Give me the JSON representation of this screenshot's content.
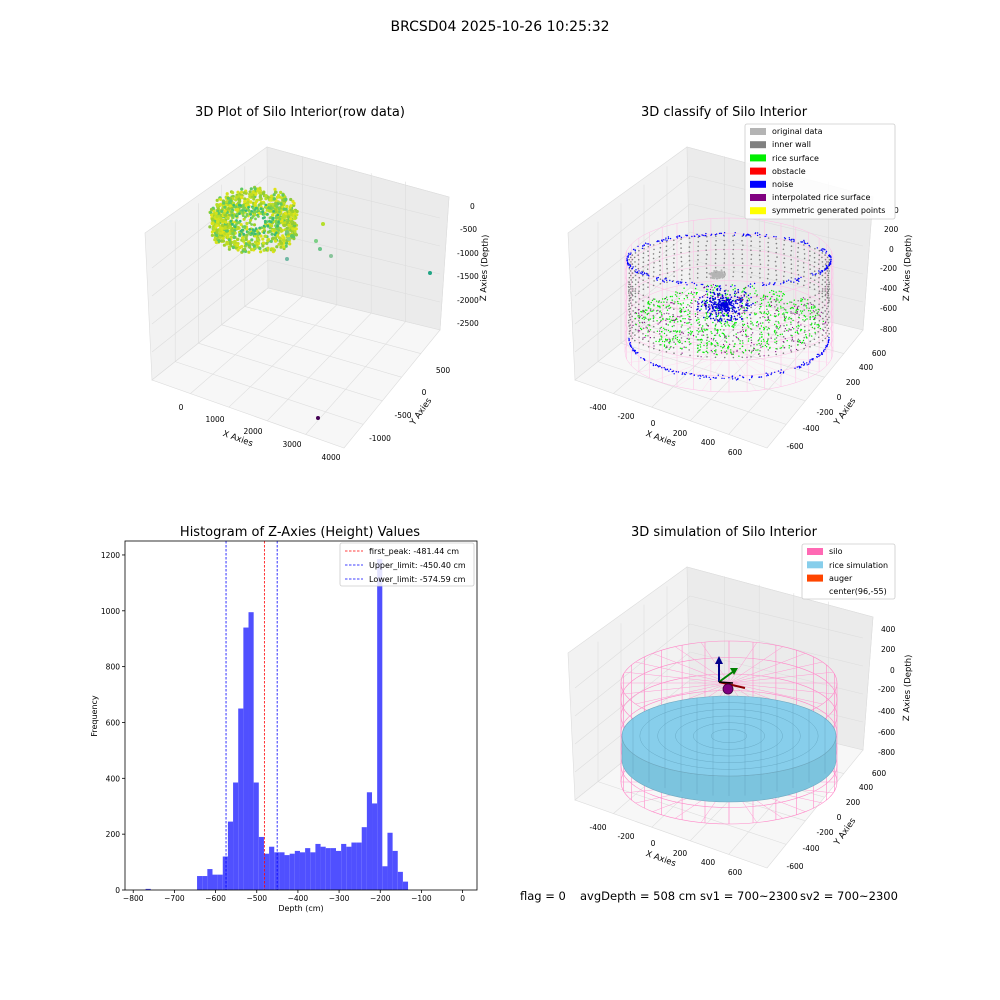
{
  "figure": {
    "suptitle": "BRCSD04 2025-10-26 10:25:32",
    "footer": {
      "flag": "flag = 0",
      "avg_depth": "avgDepth = 508 cm",
      "sv1": "sv1 = 700~2300",
      "sv2": "sv2 = 700~2300"
    }
  },
  "chart_data": [
    {
      "type": "scatter",
      "subtype": "3d",
      "title": "3D Plot of Silo Interior(row data)",
      "xlabel": "X Axies",
      "ylabel": "Y Axies",
      "zlabel": "Z Axies (Depth)",
      "x_ticks": [
        "0",
        "1000",
        "2000",
        "3000",
        "4000"
      ],
      "y_ticks": [
        "-1000",
        "-500",
        "0",
        "500"
      ],
      "z_ticks": [
        "0",
        "-500",
        "-1000",
        "-1500",
        "-2000",
        "-2500"
      ],
      "colormap": "viridis",
      "series": [
        {
          "role": "dense-cluster",
          "approx_x": [
            -200,
            700
          ],
          "approx_y": [
            -600,
            600
          ],
          "approx_z": [
            -900,
            -300
          ],
          "colors": [
            "#9acd32",
            "#d6e21b",
            "#2fb47c"
          ]
        },
        {
          "role": "outliers",
          "points": [
            {
              "x": 900,
              "y": -300,
              "z": -1600,
              "color": "#78c679"
            },
            {
              "x": 1000,
              "y": -200,
              "z": -1300,
              "color": "#5ec962"
            },
            {
              "x": 1500,
              "y": -100,
              "z": -1400,
              "color": "#21918c"
            },
            {
              "x": 1700,
              "y": -50,
              "z": -1500,
              "color": "#3bbc75"
            },
            {
              "x": 2000,
              "y": 0,
              "z": -1700,
              "color": "#2a9d8f"
            },
            {
              "x": 1800,
              "y": 200,
              "z": -800,
              "color": "#b5de2b"
            },
            {
              "x": 3800,
              "y": 300,
              "z": -1200,
              "color": "#21a585"
            },
            {
              "x": 3400,
              "y": -900,
              "z": -2900,
              "color": "#440154"
            }
          ]
        }
      ]
    },
    {
      "type": "scatter",
      "subtype": "3d",
      "title": "3D classify of Silo Interior",
      "xlabel": "X Axies",
      "ylabel": "Y Axies",
      "zlabel": "Z Axies (Depth)",
      "x_ticks": [
        "-400",
        "-200",
        "0",
        "200",
        "400",
        "600"
      ],
      "y_ticks": [
        "-600",
        "-400",
        "-200",
        "0",
        "200",
        "400",
        "600"
      ],
      "z_ticks": [
        "200",
        "0",
        "-200",
        "-400",
        "-600",
        "-800"
      ],
      "z_top_tick": "0",
      "legend_position": "upper right",
      "legend": [
        {
          "label": "original data",
          "color": "#b4b4b4"
        },
        {
          "label": "inner wall",
          "color": "#808080"
        },
        {
          "label": "rice surface",
          "color": "#00ee00"
        },
        {
          "label": "obstacle",
          "color": "#ff0000"
        },
        {
          "label": "noise",
          "color": "#0000ff"
        },
        {
          "label": "interpolated rice surface",
          "color": "#800080"
        },
        {
          "label": "symmetric generated points",
          "color": "#ffff00"
        }
      ],
      "silo_wireframe_color": "#ffb6e6"
    },
    {
      "type": "bar",
      "subtype": "histogram",
      "title": "Histogram of Z-Axies (Height) Values",
      "xlabel": "Depth (cm)",
      "ylabel": "Frequency",
      "xlim": [
        -820,
        35
      ],
      "ylim": [
        0,
        1250
      ],
      "x_ticks": [
        -800,
        -700,
        -600,
        -500,
        -400,
        -300,
        -200,
        -100,
        0
      ],
      "y_ticks": [
        0,
        200,
        400,
        600,
        800,
        1000,
        1200
      ],
      "bar_color": "#5050ff",
      "bin_start": -645,
      "bin_width": 12.5,
      "values": [
        50,
        50,
        75,
        55,
        55,
        120,
        245,
        385,
        650,
        940,
        995,
        385,
        190,
        130,
        155,
        135,
        135,
        125,
        130,
        140,
        135,
        150,
        135,
        165,
        155,
        150,
        150,
        140,
        165,
        155,
        170,
        170,
        225,
        350,
        310,
        1185,
        85,
        205,
        140,
        65,
        30
      ],
      "stray_bins": [
        {
          "x": -770,
          "width": 12.5,
          "value": 4
        }
      ],
      "lines": [
        {
          "label": "first_peak: -481.44 cm",
          "x": -481.44,
          "color": "#ff0000"
        },
        {
          "label": "Upper_limit: -450.40 cm",
          "x": -450.4,
          "color": "#0000ff"
        },
        {
          "label": "Lower_limit: -574.59 cm",
          "x": -574.59,
          "color": "#0000ff"
        }
      ],
      "legend_position": "upper right"
    },
    {
      "type": "scatter",
      "subtype": "3d",
      "title": "3D simulation of Silo Interior",
      "xlabel": "X Axies",
      "ylabel": "Y Axies",
      "zlabel": "Z Axies (Depth)",
      "x_ticks": [
        "-400",
        "-200",
        "0",
        "200",
        "400",
        "600"
      ],
      "y_ticks": [
        "-600",
        "-400",
        "-200",
        "0",
        "200",
        "400",
        "600"
      ],
      "z_ticks": [
        "400",
        "200",
        "0",
        "-200",
        "-400",
        "-600",
        "-800"
      ],
      "legend_position": "upper right",
      "legend": [
        {
          "label": "silo",
          "color": "#ff69b4"
        },
        {
          "label": "rice simulation",
          "color": "#87ceeb"
        },
        {
          "label": "auger",
          "color": "#ff4500"
        },
        {
          "label": "center(96,-55)",
          "color": ""
        }
      ],
      "center": {
        "x": 96,
        "y": -55
      }
    }
  ]
}
